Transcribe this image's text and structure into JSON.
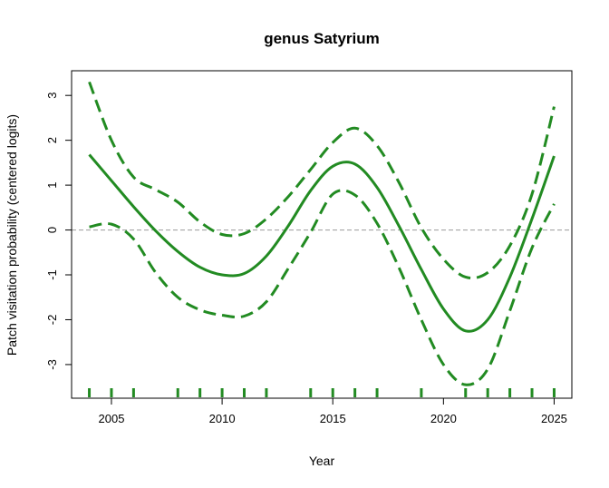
{
  "chart_data": {
    "type": "line",
    "title": "genus Satyrium",
    "xlabel": "Year",
    "ylabel": "Patch visitation probability (centered logits)",
    "xlim": [
      2003.2,
      2025.8
    ],
    "ylim": [
      -3.75,
      3.55
    ],
    "xticks": [
      2005,
      2010,
      2015,
      2020,
      2025
    ],
    "yticks": [
      -3,
      -2,
      -1,
      0,
      1,
      2,
      3
    ],
    "reference_line": 0,
    "colors": {
      "fit": "#228B22",
      "reference": "#a6a6a6"
    },
    "series": [
      {
        "role": "fit",
        "x": [
          2004,
          2005,
          2006,
          2007,
          2008,
          2009,
          2010,
          2011,
          2012,
          2013,
          2014,
          2015,
          2016,
          2017,
          2018,
          2019,
          2020,
          2021,
          2022,
          2023,
          2024,
          2025
        ],
        "y": [
          1.68,
          1.1,
          0.52,
          -0.02,
          -0.48,
          -0.83,
          -1.0,
          -0.97,
          -0.58,
          0.1,
          0.88,
          1.42,
          1.47,
          0.95,
          0.08,
          -0.88,
          -1.76,
          -2.25,
          -2.0,
          -1.05,
          0.25,
          1.65
        ]
      },
      {
        "role": "upper",
        "x": [
          2004,
          2005,
          2006,
          2007,
          2008,
          2009,
          2010,
          2011,
          2012,
          2013,
          2014,
          2015,
          2016,
          2017,
          2018,
          2019,
          2020,
          2021,
          2022,
          2023,
          2024,
          2025
        ],
        "y": [
          3.3,
          2.0,
          1.18,
          0.9,
          0.62,
          0.18,
          -0.1,
          -0.08,
          0.25,
          0.75,
          1.35,
          1.95,
          2.27,
          1.88,
          1.05,
          0.05,
          -0.65,
          -1.05,
          -0.95,
          -0.35,
          0.8,
          2.75
        ]
      },
      {
        "role": "lower",
        "x": [
          2004,
          2005,
          2006,
          2007,
          2008,
          2009,
          2010,
          2011,
          2012,
          2013,
          2014,
          2015,
          2016,
          2017,
          2018,
          2019,
          2020,
          2021,
          2022,
          2023,
          2024,
          2025
        ],
        "y": [
          0.07,
          0.13,
          -0.2,
          -0.95,
          -1.5,
          -1.78,
          -1.9,
          -1.92,
          -1.6,
          -0.85,
          -0.05,
          0.8,
          0.78,
          0.15,
          -0.85,
          -2.0,
          -3.0,
          -3.45,
          -3.1,
          -1.8,
          -0.4,
          0.58
        ]
      }
    ],
    "rug_x": [
      2004,
      2005,
      2006,
      2008,
      2009,
      2010,
      2011,
      2012,
      2014,
      2015,
      2016,
      2017,
      2019,
      2021,
      2022,
      2023,
      2024,
      2025
    ]
  }
}
